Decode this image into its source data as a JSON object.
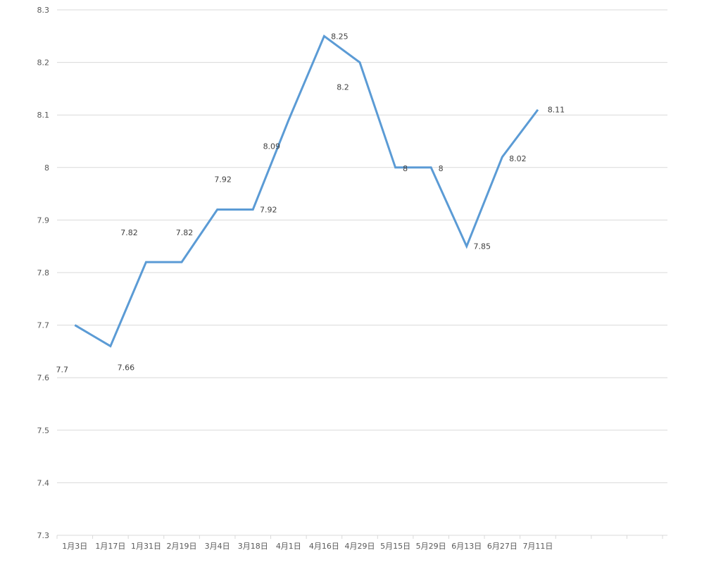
{
  "chart_data": {
    "type": "line",
    "title": "",
    "xlabel": "",
    "ylabel": "",
    "ylim": [
      7.3,
      8.3
    ],
    "y_ticks": [
      "7.3",
      "7.4",
      "7.5",
      "7.6",
      "7.7",
      "7.8",
      "7.9",
      "8",
      "8.1",
      "8.2",
      "8.3"
    ],
    "categories": [
      "1月3日",
      "1月17日",
      "1月31日",
      "2月19日",
      "3月4日",
      "3月18日",
      "4月1日",
      "4月16日",
      "4月29日",
      "5月15日",
      "5月29日",
      "6月13日",
      "6月27日",
      "7月11日",
      "",
      "",
      ""
    ],
    "series": [
      {
        "values": [
          7.7,
          7.66,
          7.82,
          7.82,
          7.92,
          7.92,
          8.09,
          8.25,
          8.2,
          8,
          8,
          7.85,
          8.02,
          8.11,
          null,
          null,
          null
        ],
        "data_labels": [
          "7.7",
          "7.66",
          "7.82",
          "7.82",
          "7.92",
          "7.92",
          "8.09",
          "8.25",
          "8.2",
          "8",
          "8",
          "7.85",
          "8.02",
          "8.11",
          "",
          "",
          ""
        ]
      }
    ],
    "grid": true,
    "legend": "none",
    "colors": {
      "line": "#5b9bd5",
      "grid": "#d9d9d9",
      "text": "#595959"
    }
  }
}
